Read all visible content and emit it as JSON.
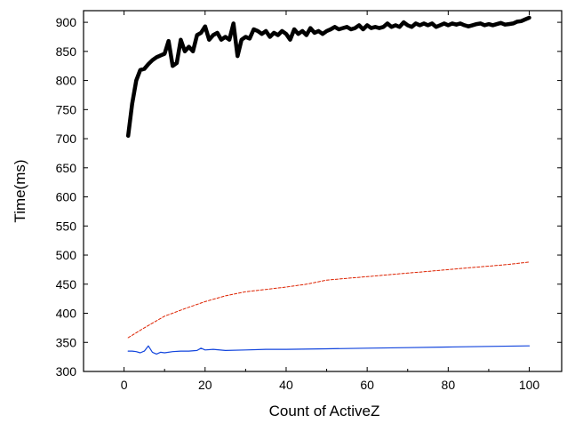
{
  "chart_data": {
    "type": "line",
    "title": "",
    "xlabel": "Count of ActiveZ",
    "ylabel": "Time(ms)",
    "xlim": [
      -10,
      108
    ],
    "ylim": [
      300,
      920
    ],
    "xticks": [
      0,
      20,
      40,
      60,
      80,
      100
    ],
    "yticks": [
      300,
      350,
      400,
      450,
      500,
      550,
      600,
      650,
      700,
      750,
      800,
      850,
      900
    ],
    "grid": false,
    "legend": "none",
    "series": [
      {
        "color": "#000000",
        "style": "solid-thick",
        "x": [
          1,
          2,
          3,
          4,
          5,
          6,
          7,
          8,
          9,
          10,
          11,
          12,
          13,
          14,
          15,
          16,
          17,
          18,
          19,
          20,
          21,
          22,
          23,
          24,
          25,
          26,
          27,
          28,
          29,
          30,
          31,
          32,
          33,
          34,
          35,
          36,
          37,
          38,
          39,
          40,
          41,
          42,
          43,
          44,
          45,
          46,
          47,
          48,
          49,
          50,
          51,
          52,
          53,
          54,
          55,
          56,
          57,
          58,
          59,
          60,
          61,
          62,
          63,
          64,
          65,
          66,
          67,
          68,
          69,
          70,
          71,
          72,
          73,
          74,
          75,
          76,
          77,
          78,
          79,
          80,
          81,
          82,
          83,
          84,
          85,
          86,
          87,
          88,
          89,
          90,
          91,
          92,
          93,
          94,
          95,
          96,
          97,
          98,
          99,
          100
        ],
        "values": [
          705,
          760,
          800,
          818,
          820,
          828,
          835,
          840,
          843,
          846,
          868,
          825,
          830,
          870,
          850,
          858,
          850,
          878,
          882,
          893,
          870,
          878,
          882,
          870,
          875,
          870,
          898,
          842,
          870,
          875,
          872,
          888,
          885,
          880,
          885,
          875,
          882,
          878,
          885,
          880,
          870,
          888,
          880,
          885,
          878,
          890,
          882,
          885,
          880,
          885,
          888,
          892,
          888,
          890,
          892,
          888,
          890,
          895,
          888,
          895,
          890,
          892,
          890,
          892,
          898,
          892,
          895,
          892,
          900,
          895,
          892,
          898,
          895,
          898,
          895,
          898,
          892,
          895,
          898,
          895,
          898,
          896,
          898,
          895,
          893,
          895,
          897,
          898,
          895,
          897,
          895,
          897,
          899,
          896,
          897,
          898,
          901,
          902,
          905,
          908
        ]
      },
      {
        "color": "#dd2200",
        "style": "dashed-thin",
        "x": [
          1,
          5,
          10,
          15,
          20,
          25,
          30,
          35,
          40,
          45,
          50,
          55,
          60,
          65,
          70,
          75,
          80,
          85,
          90,
          95,
          100
        ],
        "values": [
          358,
          375,
          395,
          408,
          420,
          430,
          437,
          441,
          445,
          450,
          457,
          460,
          463,
          466,
          469,
          472,
          475,
          478,
          481,
          484,
          488
        ]
      },
      {
        "color": "#1144dd",
        "style": "solid-thin",
        "x": [
          1,
          2,
          3,
          4,
          5,
          6,
          7,
          8,
          9,
          10,
          12,
          14,
          16,
          18,
          19,
          20,
          22,
          25,
          30,
          35,
          40,
          50,
          60,
          70,
          80,
          90,
          100
        ],
        "values": [
          335,
          335,
          334,
          332,
          335,
          344,
          333,
          330,
          333,
          332,
          334,
          335,
          335,
          336,
          340,
          337,
          338,
          336,
          337,
          338,
          338,
          339,
          340,
          341,
          342,
          343,
          344
        ]
      }
    ]
  }
}
